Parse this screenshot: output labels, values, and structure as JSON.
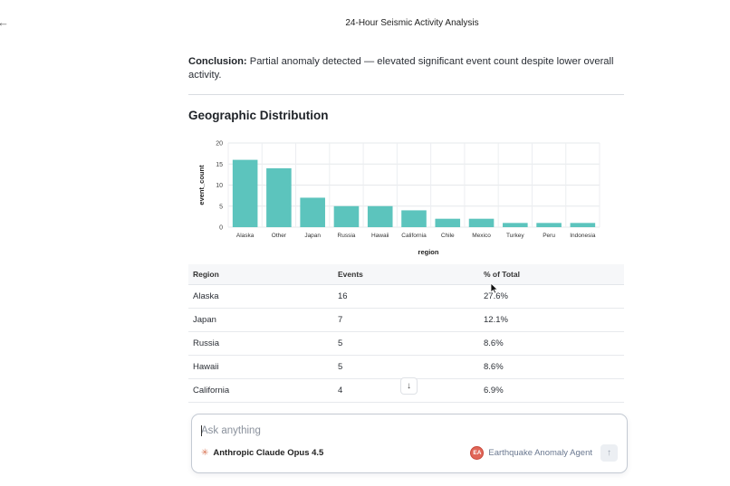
{
  "nav": {
    "back_glyph": "←"
  },
  "header": {
    "title": "24-Hour Seismic Activity Analysis"
  },
  "conclusion": {
    "label": "Conclusion:",
    "text": " Partial anomaly detected — elevated significant event count despite lower overall activity."
  },
  "section": {
    "title": "Geographic Distribution"
  },
  "chart_data": {
    "type": "bar",
    "title": "",
    "xlabel": "region",
    "ylabel": "event_count",
    "categories": [
      "Alaska",
      "Other",
      "Japan",
      "Russia",
      "Hawaii",
      "California",
      "Chile",
      "Mexico",
      "Turkey",
      "Peru",
      "Indonesia"
    ],
    "values": [
      16,
      14,
      7,
      5,
      5,
      4,
      2,
      2,
      1,
      1,
      1
    ],
    "ylim": [
      0,
      20
    ],
    "yticks": [
      "0",
      "5",
      "10",
      "15",
      "20"
    ],
    "grid": true,
    "bar_color": "#5cc4bd"
  },
  "table": {
    "headers": [
      "Region",
      "Events",
      "% of Total"
    ],
    "rows": [
      [
        "Alaska",
        "16",
        "27.6%"
      ],
      [
        "Japan",
        "7",
        "12.1%"
      ],
      [
        "Russia",
        "5",
        "8.6%"
      ],
      [
        "Hawaii",
        "5",
        "8.6%"
      ],
      [
        "California",
        "4",
        "6.9%"
      ]
    ]
  },
  "scroll_button": {
    "icon": "arrow-down-icon",
    "glyph": "↓"
  },
  "composer": {
    "placeholder": "Ask anything",
    "model_icon": "✳",
    "model_name": "Anthropic Claude Opus 4.5",
    "agent_initials": "EA",
    "agent_name": "Earthquake Anomaly Agent",
    "send_glyph": "↑"
  }
}
